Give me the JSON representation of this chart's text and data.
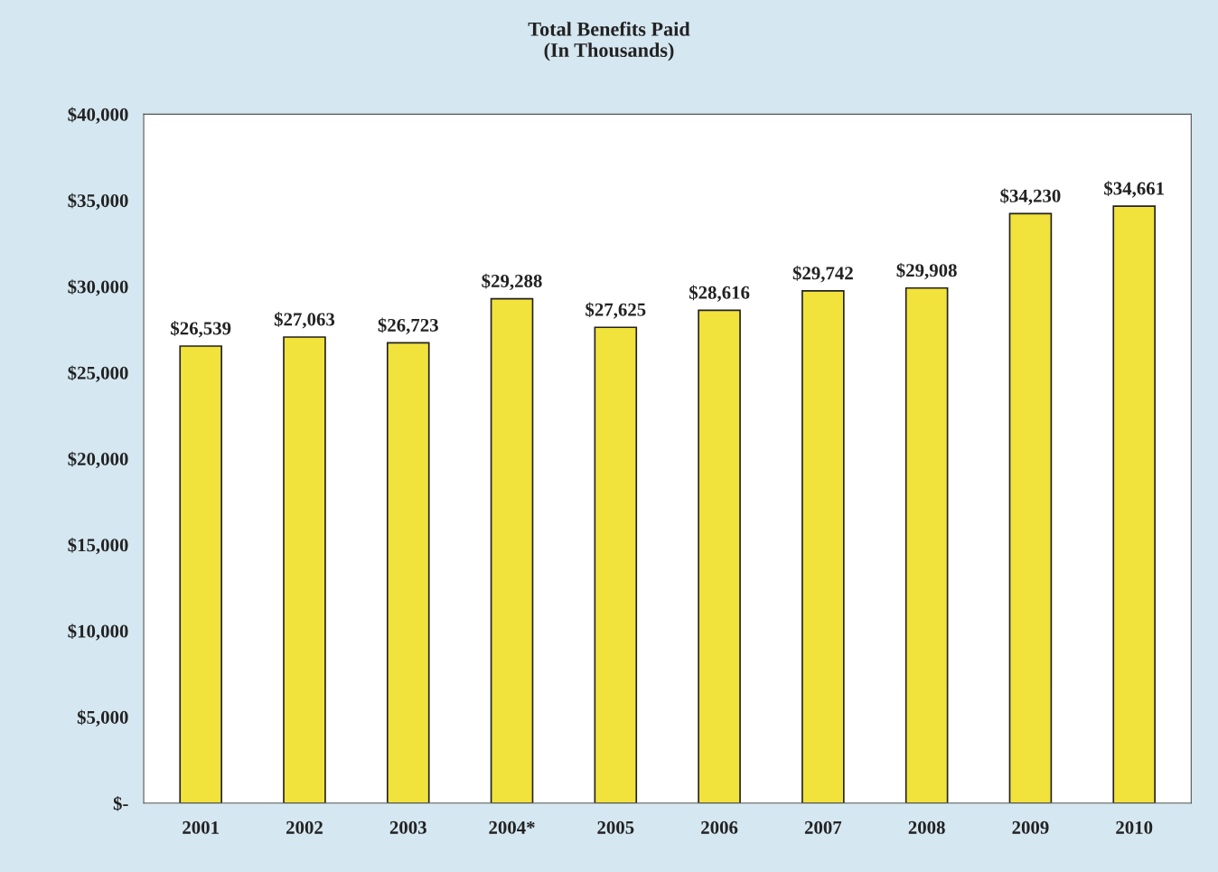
{
  "chart_data": {
    "type": "bar",
    "title": "Total Benefits Paid\n(In Thousands)",
    "categories": [
      "2001",
      "2002",
      "2003",
      "2004*",
      "2005",
      "2006",
      "2007",
      "2008",
      "2009",
      "2010"
    ],
    "values": [
      26539,
      27063,
      26723,
      29288,
      27625,
      28616,
      29742,
      29908,
      34230,
      34661
    ],
    "value_labels": [
      "$26,539",
      "$27,063",
      "$26,723",
      "$29,288",
      "$27,625",
      "$28,616",
      "$29,742",
      "$29,908",
      "$34,230",
      "$34,661"
    ],
    "color": "#f2e23c",
    "ylim": [
      0,
      40000
    ],
    "yticks": [
      {
        "value": 0,
        "label": "$-"
      },
      {
        "value": 5000,
        "label": "$5,000"
      },
      {
        "value": 10000,
        "label": "$10,000"
      },
      {
        "value": 15000,
        "label": "$15,000"
      },
      {
        "value": 20000,
        "label": "$20,000"
      },
      {
        "value": 25000,
        "label": "$25,000"
      },
      {
        "value": 30000,
        "label": "$30,000"
      },
      {
        "value": 35000,
        "label": "$35,000"
      },
      {
        "value": 40000,
        "label": "$40,000"
      }
    ],
    "grid": false,
    "legend": false
  }
}
